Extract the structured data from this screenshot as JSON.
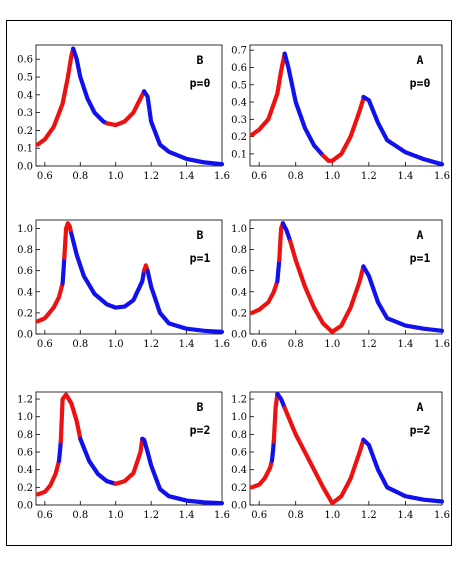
{
  "colors": {
    "frame": "#000000",
    "stable": "#ee1111",
    "unstable": "#1111ee"
  },
  "chart_data": [
    {
      "type": "scatter",
      "label": "B",
      "param": "p=0",
      "xlim": [
        0.55,
        1.6
      ],
      "ylim": [
        0,
        0.68
      ],
      "xticks": [
        "0.6",
        "0.8",
        "1.0",
        "1.2",
        "1.4",
        "1.6"
      ],
      "yticks": [
        "0.0",
        "0.1",
        "0.2",
        "0.3",
        "0.4",
        "0.5",
        "0.6"
      ],
      "ytick_values": [
        0,
        0.1,
        0.2,
        0.3,
        0.4,
        0.5,
        0.6
      ],
      "series": [
        {
          "color": "red",
          "x": [
            0.56,
            0.6,
            0.65,
            0.7,
            0.73,
            0.75,
            0.76
          ],
          "y": [
            0.12,
            0.15,
            0.22,
            0.35,
            0.5,
            0.62,
            0.66
          ]
        },
        {
          "color": "blue",
          "x": [
            0.76,
            0.78,
            0.8,
            0.84,
            0.88,
            0.93,
            0.95
          ],
          "y": [
            0.66,
            0.6,
            0.5,
            0.38,
            0.3,
            0.25,
            0.24
          ]
        },
        {
          "color": "red",
          "x": [
            0.95,
            1.0,
            1.05,
            1.1,
            1.14,
            1.16
          ],
          "y": [
            0.24,
            0.23,
            0.25,
            0.3,
            0.38,
            0.42
          ]
        },
        {
          "color": "blue",
          "x": [
            1.16,
            1.18,
            1.2,
            1.25,
            1.3,
            1.4,
            1.5,
            1.6
          ],
          "y": [
            0.42,
            0.39,
            0.25,
            0.12,
            0.08,
            0.04,
            0.02,
            0.01
          ]
        }
      ]
    },
    {
      "type": "scatter",
      "label": "A",
      "param": "p=0",
      "xlim": [
        0.55,
        1.6
      ],
      "ylim": [
        0.03,
        0.73
      ],
      "xticks": [
        "0.6",
        "0.8",
        "1.0",
        "1.2",
        "1.4",
        "1.6"
      ],
      "yticks": [
        "0.1",
        "0.2",
        "0.3",
        "0.4",
        "0.5",
        "0.6",
        "0.7"
      ],
      "ytick_values": [
        0.1,
        0.2,
        0.3,
        0.4,
        0.5,
        0.6,
        0.7
      ],
      "series": [
        {
          "color": "red",
          "x": [
            0.56,
            0.6,
            0.65,
            0.7,
            0.72,
            0.74
          ],
          "y": [
            0.21,
            0.24,
            0.3,
            0.45,
            0.58,
            0.68
          ]
        },
        {
          "color": "blue",
          "x": [
            0.74,
            0.76,
            0.8,
            0.85,
            0.9,
            0.95
          ],
          "y": [
            0.68,
            0.6,
            0.4,
            0.25,
            0.15,
            0.09
          ]
        },
        {
          "color": "red",
          "x": [
            0.95,
            0.98,
            1.0,
            1.05,
            1.1,
            1.15,
            1.17
          ],
          "y": [
            0.09,
            0.06,
            0.06,
            0.1,
            0.2,
            0.35,
            0.42
          ]
        },
        {
          "color": "blue",
          "x": [
            1.17,
            1.2,
            1.25,
            1.3,
            1.4,
            1.5,
            1.6
          ],
          "y": [
            0.43,
            0.41,
            0.28,
            0.18,
            0.11,
            0.07,
            0.04
          ]
        }
      ]
    },
    {
      "type": "scatter",
      "label": "B",
      "param": "p=1",
      "xlim": [
        0.55,
        1.6
      ],
      "ylim": [
        0,
        1.08
      ],
      "xticks": [
        "0.6",
        "0.8",
        "1.0",
        "1.2",
        "1.4",
        "1.6"
      ],
      "yticks": [
        "0.0",
        "0.2",
        "0.4",
        "0.6",
        "0.8",
        "1.0"
      ],
      "ytick_values": [
        0,
        0.2,
        0.4,
        0.6,
        0.8,
        1.0
      ],
      "series": [
        {
          "color": "red",
          "x": [
            0.56,
            0.6,
            0.65,
            0.68,
            0.7
          ],
          "y": [
            0.12,
            0.15,
            0.25,
            0.35,
            0.48
          ]
        },
        {
          "color": "blue",
          "x": [
            0.7,
            0.705,
            0.71
          ],
          "y": [
            0.48,
            0.6,
            0.72
          ]
        },
        {
          "color": "red",
          "x": [
            0.71,
            0.72,
            0.73,
            0.74,
            0.75
          ],
          "y": [
            0.72,
            1.0,
            1.05,
            1.02,
            0.95
          ]
        },
        {
          "color": "blue",
          "x": [
            0.75,
            0.78,
            0.82,
            0.88,
            0.95,
            1.0,
            1.05,
            1.1,
            1.15,
            1.16
          ],
          "y": [
            0.95,
            0.75,
            0.55,
            0.38,
            0.28,
            0.25,
            0.26,
            0.32,
            0.5,
            0.6
          ]
        },
        {
          "color": "red",
          "x": [
            1.16,
            1.17,
            1.18
          ],
          "y": [
            0.6,
            0.65,
            0.6
          ]
        },
        {
          "color": "blue",
          "x": [
            1.18,
            1.2,
            1.25,
            1.3,
            1.4,
            1.5,
            1.6
          ],
          "y": [
            0.6,
            0.45,
            0.2,
            0.1,
            0.05,
            0.03,
            0.02
          ]
        }
      ]
    },
    {
      "type": "scatter",
      "label": "A",
      "param": "p=1",
      "xlim": [
        0.55,
        1.6
      ],
      "ylim": [
        0,
        1.08
      ],
      "xticks": [
        "0.6",
        "0.8",
        "1.0",
        "1.2",
        "1.4",
        "1.6"
      ],
      "yticks": [
        "0.0",
        "0.2",
        "0.4",
        "0.6",
        "0.8",
        "1.0"
      ],
      "ytick_values": [
        0,
        0.2,
        0.4,
        0.6,
        0.8,
        1.0
      ],
      "series": [
        {
          "color": "red",
          "x": [
            0.56,
            0.6,
            0.65,
            0.68,
            0.7
          ],
          "y": [
            0.2,
            0.23,
            0.3,
            0.4,
            0.5
          ]
        },
        {
          "color": "blue",
          "x": [
            0.7,
            0.705,
            0.71
          ],
          "y": [
            0.5,
            0.6,
            0.7
          ]
        },
        {
          "color": "red",
          "x": [
            0.71,
            0.72,
            0.73
          ],
          "y": [
            0.7,
            1.0,
            1.05
          ]
        },
        {
          "color": "blue",
          "x": [
            0.73,
            0.75,
            0.77
          ],
          "y": [
            1.05,
            0.98,
            0.88
          ]
        },
        {
          "color": "red",
          "x": [
            0.77,
            0.8,
            0.85,
            0.9,
            0.95,
            1.0,
            1.05,
            1.1,
            1.15,
            1.17
          ],
          "y": [
            0.88,
            0.7,
            0.45,
            0.25,
            0.1,
            0.02,
            0.08,
            0.25,
            0.5,
            0.64
          ]
        },
        {
          "color": "blue",
          "x": [
            1.17,
            1.2,
            1.25,
            1.3,
            1.4,
            1.5,
            1.6
          ],
          "y": [
            0.64,
            0.55,
            0.3,
            0.15,
            0.08,
            0.05,
            0.03
          ]
        }
      ]
    },
    {
      "type": "scatter",
      "label": "B",
      "param": "p=2",
      "xlim": [
        0.55,
        1.6
      ],
      "ylim": [
        0,
        1.28
      ],
      "xticks": [
        "0.6",
        "0.8",
        "1.0",
        "1.2",
        "1.4",
        "1.6"
      ],
      "yticks": [
        "0.0",
        "0.2",
        "0.4",
        "0.6",
        "0.8",
        "1.0",
        "1.2"
      ],
      "ytick_values": [
        0,
        0.2,
        0.4,
        0.6,
        0.8,
        1.0,
        1.2
      ],
      "series": [
        {
          "color": "red",
          "x": [
            0.56,
            0.6,
            0.63,
            0.66,
            0.68
          ],
          "y": [
            0.12,
            0.15,
            0.22,
            0.35,
            0.5
          ]
        },
        {
          "color": "blue",
          "x": [
            0.68,
            0.685,
            0.69
          ],
          "y": [
            0.5,
            0.6,
            0.72
          ]
        },
        {
          "color": "red",
          "x": [
            0.69,
            0.7,
            0.72,
            0.75,
            0.78,
            0.8
          ],
          "y": [
            0.72,
            1.2,
            1.25,
            1.15,
            0.95,
            0.75
          ]
        },
        {
          "color": "blue",
          "x": [
            0.8,
            0.85,
            0.9,
            0.95,
            1.0
          ],
          "y": [
            0.75,
            0.5,
            0.35,
            0.27,
            0.24
          ]
        },
        {
          "color": "red",
          "x": [
            1.0,
            1.05,
            1.1,
            1.14,
            1.15
          ],
          "y": [
            0.24,
            0.27,
            0.36,
            0.6,
            0.75
          ]
        },
        {
          "color": "blue",
          "x": [
            1.15,
            1.16,
            1.18,
            1.2,
            1.25,
            1.3,
            1.4,
            1.5,
            1.6
          ],
          "y": [
            0.75,
            0.74,
            0.6,
            0.45,
            0.18,
            0.1,
            0.05,
            0.03,
            0.02
          ]
        }
      ]
    },
    {
      "type": "scatter",
      "label": "A",
      "param": "p=2",
      "xlim": [
        0.55,
        1.6
      ],
      "ylim": [
        0,
        1.28
      ],
      "xticks": [
        "0.6",
        "0.8",
        "1.0",
        "1.2",
        "1.4",
        "1.6"
      ],
      "yticks": [
        "0.0",
        "0.2",
        "0.4",
        "0.6",
        "0.8",
        "1.0",
        "1.2"
      ],
      "ytick_values": [
        0,
        0.2,
        0.4,
        0.6,
        0.8,
        1.0,
        1.2
      ],
      "series": [
        {
          "color": "red",
          "x": [
            0.56,
            0.6,
            0.63,
            0.66,
            0.67
          ],
          "y": [
            0.2,
            0.23,
            0.3,
            0.42,
            0.5
          ]
        },
        {
          "color": "blue",
          "x": [
            0.67,
            0.675,
            0.68
          ],
          "y": [
            0.5,
            0.6,
            0.72
          ]
        },
        {
          "color": "red",
          "x": [
            0.68,
            0.69,
            0.7
          ],
          "y": [
            0.72,
            1.1,
            1.26
          ]
        },
        {
          "color": "blue",
          "x": [
            0.7,
            0.72,
            0.74
          ],
          "y": [
            1.26,
            1.2,
            1.1
          ]
        },
        {
          "color": "red",
          "x": [
            0.74,
            0.8,
            0.85,
            0.9,
            0.95,
            1.0,
            1.05,
            1.1,
            1.15,
            1.17
          ],
          "y": [
            1.1,
            0.8,
            0.6,
            0.4,
            0.2,
            0.02,
            0.1,
            0.3,
            0.6,
            0.74
          ]
        },
        {
          "color": "blue",
          "x": [
            1.17,
            1.2,
            1.25,
            1.3,
            1.4,
            1.5,
            1.6
          ],
          "y": [
            0.74,
            0.68,
            0.4,
            0.2,
            0.1,
            0.06,
            0.04
          ]
        }
      ]
    }
  ]
}
